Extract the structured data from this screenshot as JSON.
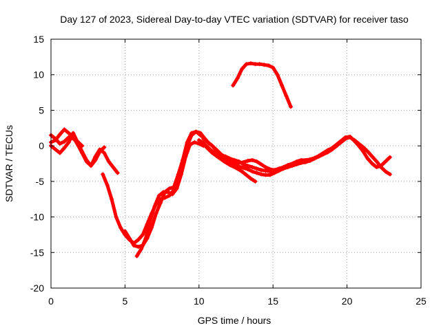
{
  "chart_data": {
    "type": "scatter",
    "title": "Day 127 of 2023, Sidereal Day-to-day VTEC variation (SDTVAR) for receiver taso",
    "xlabel": "GPS time / hours",
    "ylabel": "SDTVAR / TECUs",
    "xlim": [
      0,
      25
    ],
    "ylim": [
      -20,
      15
    ],
    "xticks": [
      0,
      5,
      10,
      15,
      20,
      25
    ],
    "yticks": [
      -20,
      -15,
      -10,
      -5,
      0,
      5,
      10,
      15
    ],
    "grid": true,
    "marker": "+",
    "color": "#ff0000",
    "series": [
      {
        "name": "track-1",
        "x": [
          0.0,
          0.3,
          0.6,
          0.9,
          1.2,
          1.5,
          1.8,
          2.1,
          2.4,
          2.7,
          3.0,
          3.3,
          3.6,
          3.9,
          4.2,
          4.5
        ],
        "y": [
          0.5,
          0.8,
          1.6,
          2.3,
          1.8,
          1.2,
          0.2,
          -1.0,
          -2.2,
          -2.8,
          -1.5,
          -0.5,
          -1.0,
          -2.2,
          -3.0,
          -3.8
        ]
      },
      {
        "name": "track-2",
        "x": [
          0.0,
          0.3,
          0.6,
          0.9,
          1.2,
          1.5,
          1.8,
          2.1,
          2.4,
          2.7,
          3.0,
          3.3,
          3.6
        ],
        "y": [
          0.0,
          -0.5,
          -1.0,
          -0.3,
          0.5,
          1.8,
          0.5,
          -0.8,
          -2.0,
          -2.8,
          -2.0,
          -0.8,
          -0.2
        ]
      },
      {
        "name": "track-3",
        "x": [
          3.5,
          3.8,
          4.1,
          4.4,
          4.7,
          5.0,
          5.3,
          5.6,
          5.9,
          6.2,
          6.5,
          6.8,
          7.1,
          7.4,
          7.7,
          8.0,
          8.3,
          8.6,
          8.9,
          9.2,
          9.5,
          9.8,
          10.1,
          10.4,
          10.7
        ],
        "y": [
          -4.0,
          -5.5,
          -7.5,
          -10.0,
          -11.5,
          -12.5,
          -13.2,
          -13.7,
          -13.2,
          -12.5,
          -11.0,
          -9.5,
          -8.2,
          -7.5,
          -7.3,
          -7.0,
          -6.2,
          -4.5,
          -2.0,
          0.5,
          1.8,
          2.0,
          1.5,
          1.0,
          0.3
        ]
      },
      {
        "name": "track-4",
        "x": [
          5.0,
          5.3,
          5.6,
          5.9,
          6.2,
          6.5,
          6.8,
          7.1,
          7.4,
          7.7,
          8.0,
          8.3,
          8.6,
          8.9,
          9.2,
          9.5,
          9.8,
          10.1,
          10.4
        ],
        "y": [
          -12.0,
          -13.0,
          -14.0,
          -14.2,
          -14.0,
          -13.0,
          -11.5,
          -9.5,
          -8.0,
          -6.5,
          -6.0,
          -5.8,
          -4.0,
          -2.0,
          0.0,
          1.5,
          2.0,
          1.8,
          1.0
        ]
      },
      {
        "name": "track-5",
        "x": [
          5.8,
          6.1,
          6.4,
          6.7,
          7.0,
          7.3,
          7.6,
          7.9,
          8.2,
          8.5,
          8.8,
          9.1,
          9.4,
          9.7,
          10.0,
          10.3
        ],
        "y": [
          -15.5,
          -14.5,
          -13.0,
          -10.5,
          -8.5,
          -7.0,
          -6.5,
          -6.5,
          -6.8,
          -6.0,
          -4.0,
          -1.5,
          0.2,
          0.5,
          0.3,
          0.0
        ]
      },
      {
        "name": "track-6",
        "x": [
          10.3,
          10.6,
          10.9,
          11.2,
          11.5,
          11.8,
          12.1,
          12.4,
          12.7,
          13.0,
          13.3,
          13.6,
          13.9,
          14.2,
          14.5,
          14.8,
          15.1,
          15.4,
          15.7,
          16.0,
          16.3,
          16.6,
          16.9,
          17.2,
          17.5,
          17.8,
          18.1,
          18.4,
          18.7,
          19.0,
          19.3,
          19.6,
          19.9,
          20.2,
          20.5,
          20.8,
          21.1,
          21.4,
          21.7,
          22.0,
          22.3,
          22.6,
          22.9
        ],
        "y": [
          1.0,
          0.5,
          0.0,
          -0.8,
          -1.3,
          -1.5,
          -1.8,
          -2.0,
          -2.2,
          -2.6,
          -2.8,
          -3.0,
          -3.2,
          -3.4,
          -3.5,
          -3.6,
          -3.5,
          -3.3,
          -3.2,
          -3.0,
          -2.8,
          -2.6,
          -2.4,
          -2.3,
          -2.1,
          -1.8,
          -1.5,
          -1.2,
          -0.9,
          -0.5,
          0.0,
          0.5,
          1.0,
          1.2,
          0.8,
          0.3,
          -0.2,
          -0.8,
          -1.5,
          -2.2,
          -3.0,
          -3.6,
          -4.0
        ]
      },
      {
        "name": "track-7",
        "x": [
          10.6,
          10.9,
          11.2,
          11.5,
          11.8,
          12.1,
          12.4,
          12.7,
          13.0,
          13.3,
          13.6,
          13.9,
          14.2,
          14.5,
          14.8,
          15.1,
          15.4,
          15.7,
          16.0,
          16.3,
          16.6,
          16.9,
          17.2,
          17.5,
          17.8,
          18.1,
          18.4,
          18.7,
          19.0,
          19.3,
          19.6,
          19.9,
          20.2,
          20.5,
          20.8,
          21.1,
          21.4,
          21.7,
          22.0,
          22.3,
          22.6,
          22.9
        ],
        "y": [
          0.5,
          0.0,
          -0.6,
          -1.2,
          -1.6,
          -2.0,
          -2.2,
          -2.4,
          -2.3,
          -2.1,
          -2.0,
          -2.2,
          -2.6,
          -3.0,
          -3.3,
          -3.4,
          -3.2,
          -3.0,
          -2.7,
          -2.5,
          -2.2,
          -2.0,
          -2.0,
          -1.9,
          -1.7,
          -1.4,
          -1.0,
          -0.6,
          -0.3,
          0.2,
          0.7,
          1.2,
          1.3,
          0.7,
          0.0,
          -0.8,
          -1.8,
          -2.5,
          -3.0,
          -2.8,
          -2.2,
          -1.6
        ]
      },
      {
        "name": "track-8",
        "x": [
          10.0,
          10.3,
          10.6,
          10.9,
          11.2,
          11.5,
          11.8,
          12.1,
          12.4,
          12.7,
          13.0,
          13.3,
          13.6,
          13.9,
          14.2,
          14.5,
          14.8,
          15.1,
          15.4,
          15.7,
          16.0
        ],
        "y": [
          0.8,
          0.4,
          -0.2,
          -0.8,
          -1.3,
          -1.8,
          -2.0,
          -2.4,
          -2.6,
          -2.9,
          -3.1,
          -3.3,
          -3.6,
          -3.8,
          -4.0,
          -4.1,
          -4.1,
          -3.8,
          -3.5,
          -3.2,
          -3.0
        ]
      },
      {
        "name": "track-9",
        "x": [
          10.5,
          10.9,
          11.3,
          11.7,
          12.1,
          12.5,
          12.9,
          13.2,
          13.5,
          13.8
        ],
        "y": [
          -0.2,
          -1.0,
          -1.6,
          -2.2,
          -2.7,
          -3.1,
          -3.6,
          -4.1,
          -4.6,
          -5.0
        ]
      },
      {
        "name": "track-10",
        "x": [
          12.3,
          12.6,
          12.9,
          13.2,
          13.5,
          13.8,
          14.1,
          14.4,
          14.7,
          15.0,
          15.3,
          15.6,
          15.9,
          16.2
        ],
        "y": [
          8.5,
          9.5,
          10.8,
          11.5,
          11.6,
          11.5,
          11.5,
          11.4,
          11.3,
          11.0,
          10.0,
          8.5,
          7.0,
          5.5
        ]
      },
      {
        "name": "track-11",
        "x": [
          0.0,
          0.3,
          0.6,
          0.9,
          1.2,
          1.5,
          1.8,
          2.1
        ],
        "y": [
          1.5,
          1.0,
          0.3,
          0.6,
          1.2,
          1.0,
          0.6,
          0.0
        ]
      }
    ]
  }
}
